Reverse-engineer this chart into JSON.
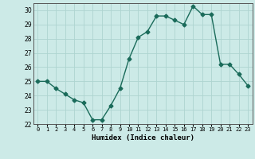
{
  "x": [
    0,
    1,
    2,
    3,
    4,
    5,
    6,
    7,
    8,
    9,
    10,
    11,
    12,
    13,
    14,
    15,
    16,
    17,
    18,
    19,
    20,
    21,
    22,
    23
  ],
  "y": [
    25.0,
    25.0,
    24.5,
    24.1,
    23.7,
    23.5,
    22.3,
    22.3,
    23.3,
    24.5,
    26.6,
    28.1,
    28.5,
    29.6,
    29.6,
    29.3,
    29.0,
    30.3,
    29.7,
    29.7,
    26.2,
    26.2,
    25.5,
    24.7
  ],
  "xlabel": "Humidex (Indice chaleur)",
  "ylim": [
    22,
    30.5
  ],
  "xlim": [
    -0.5,
    23.5
  ],
  "yticks": [
    22,
    23,
    24,
    25,
    26,
    27,
    28,
    29,
    30
  ],
  "xtick_labels": [
    "0",
    "1",
    "2",
    "3",
    "4",
    "5",
    "6",
    "7",
    "8",
    "9",
    "10",
    "11",
    "12",
    "13",
    "14",
    "15",
    "16",
    "17",
    "18",
    "19",
    "20",
    "21",
    "22",
    "23"
  ],
  "line_color": "#1a6b5a",
  "bg_color": "#cceae7",
  "grid_color": "#aed4d0",
  "marker": "D",
  "marker_size": 2.5,
  "line_width": 1.0
}
